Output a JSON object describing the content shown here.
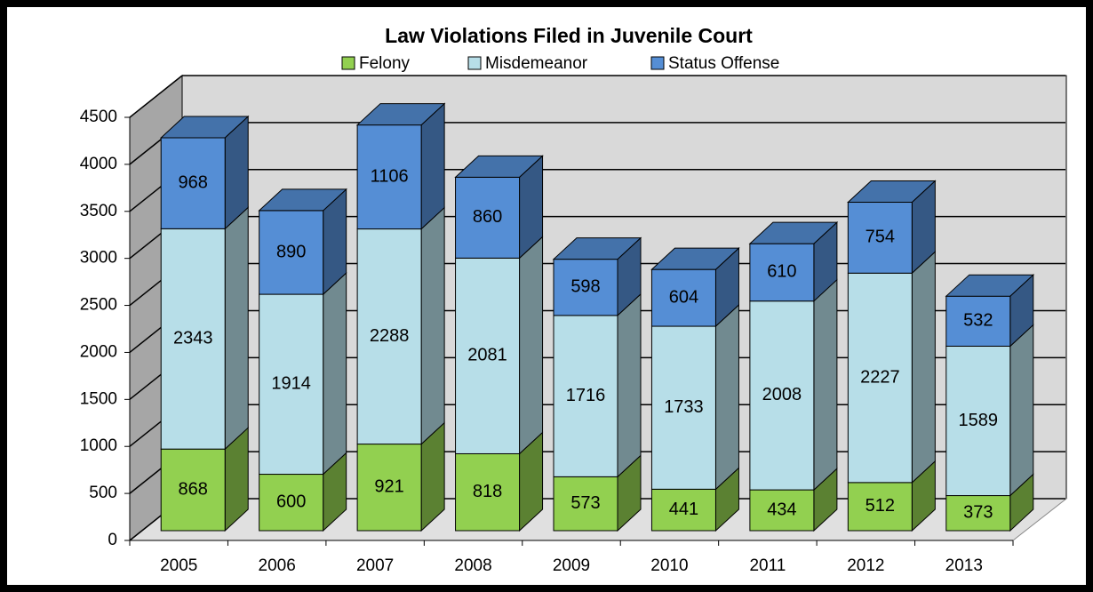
{
  "chart_data": {
    "type": "bar3d_stacked",
    "title": "Law Violations Filed in Juvenile Court",
    "categories": [
      "2005",
      "2006",
      "2007",
      "2008",
      "2009",
      "2010",
      "2011",
      "2012",
      "2013"
    ],
    "series": [
      {
        "name": "Felony",
        "color": "#92d050",
        "values": [
          868,
          600,
          921,
          818,
          573,
          441,
          434,
          512,
          373
        ]
      },
      {
        "name": "Misdemeanor",
        "color": "#b7dee8",
        "values": [
          2343,
          1914,
          2288,
          2081,
          1716,
          1733,
          2008,
          2227,
          1589
        ]
      },
      {
        "name": "Status Offense",
        "color": "#558ed5",
        "values": [
          968,
          890,
          1106,
          860,
          598,
          604,
          610,
          754,
          532
        ]
      }
    ],
    "ylim": [
      0,
      4500
    ],
    "yticks": [
      0,
      500,
      1000,
      1500,
      2000,
      2500,
      3000,
      3500,
      4000,
      4500
    ],
    "grid": true,
    "legend": "top"
  }
}
